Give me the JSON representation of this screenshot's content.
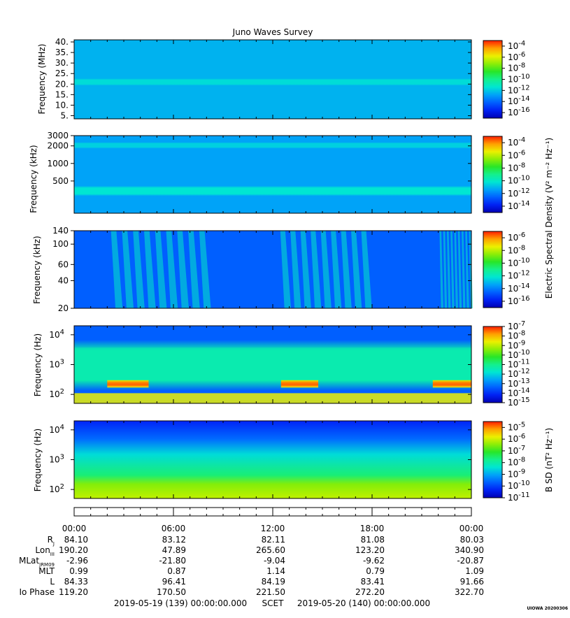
{
  "title": "Juno Waves Survey",
  "panels": [
    {
      "ylabel": "Frequency (MHz)",
      "yscale": "linear",
      "ylim": [
        3.5,
        41
      ],
      "yticks": [
        "5.",
        "10.",
        "15.",
        "20.",
        "25.",
        "30.",
        "35.",
        "40."
      ],
      "ytick_values": [
        5,
        10,
        15,
        20,
        25,
        30,
        35,
        40
      ],
      "colorbar": {
        "exponents": [
          "-4",
          "-6",
          "-8",
          "-10",
          "-12",
          "-14",
          "-16"
        ],
        "exponent_values": [
          -4,
          -6,
          -8,
          -10,
          -12,
          -14,
          -16
        ],
        "range": [
          -17,
          -3
        ]
      }
    },
    {
      "ylabel": "Frequency (kHz)",
      "yscale": "log",
      "ylim": [
        140,
        3000
      ],
      "yticks": [
        "500",
        "1000",
        "2000",
        "3000"
      ],
      "ytick_values": [
        500,
        1000,
        2000,
        3000
      ],
      "colorbar": {
        "label": "Electric Spectral Density (V² m⁻² Hz⁻¹)",
        "exponents": [
          "-4",
          "-6",
          "-8",
          "-10",
          "-12",
          "-14"
        ],
        "exponent_values": [
          -4,
          -6,
          -8,
          -10,
          -12,
          -14
        ],
        "range": [
          -15,
          -3
        ]
      }
    },
    {
      "ylabel": "Frequency (kHz)",
      "yscale": "log",
      "ylim": [
        20,
        140
      ],
      "yticks": [
        "20",
        "40",
        "60",
        "100",
        "140"
      ],
      "ytick_values": [
        20,
        40,
        60,
        100,
        140
      ],
      "colorbar": {
        "exponents": [
          "-6",
          "-8",
          "-10",
          "-12",
          "-14",
          "-16"
        ],
        "exponent_values": [
          -6,
          -8,
          -10,
          -12,
          -14,
          -16
        ],
        "range": [
          -17,
          -5
        ]
      }
    },
    {
      "ylabel": "Frequency (Hz)",
      "yscale": "log",
      "ylim": [
        50,
        20000
      ],
      "yticks": [
        "2",
        "3",
        "4"
      ],
      "ytick_values": [
        100,
        1000,
        10000
      ],
      "colorbar": {
        "exponents": [
          "-7",
          "-8",
          "-9",
          "-10",
          "-11",
          "-12",
          "-13",
          "-14",
          "-15"
        ],
        "exponent_values": [
          -7,
          -8,
          -9,
          -10,
          -11,
          -12,
          -13,
          -14,
          -15
        ],
        "range": [
          -15,
          -7
        ]
      }
    },
    {
      "ylabel": "Frequency (Hz)",
      "yscale": "log",
      "ylim": [
        50,
        20000
      ],
      "yticks": [
        "2",
        "3",
        "4"
      ],
      "ytick_values": [
        100,
        1000,
        10000
      ],
      "colorbar": {
        "label": "B SD (nT² Hz⁻¹)",
        "exponents": [
          "-5",
          "-6",
          "-7",
          "-8",
          "-9",
          "-10",
          "-11"
        ],
        "exponent_values": [
          -5,
          -6,
          -7,
          -8,
          -9,
          -10,
          -11
        ],
        "range": [
          -11,
          -4.5
        ]
      }
    }
  ],
  "ephemeris": {
    "times": [
      "00:00",
      "06:00",
      "12:00",
      "18:00",
      "00:00"
    ],
    "rows": [
      {
        "label": "R",
        "sub": "J",
        "values": [
          "84.10",
          "83.12",
          "82.11",
          "81.08",
          "80.03"
        ]
      },
      {
        "label": "Lon",
        "sub": "III",
        "values": [
          "190.20",
          "47.89",
          "265.60",
          "123.20",
          "340.90"
        ]
      },
      {
        "label": "MLat",
        "sub": "JRM09",
        "values": [
          "-2.96",
          "-21.80",
          "-9.04",
          "-9.62",
          "-20.87"
        ]
      },
      {
        "label": "MLT",
        "sub": "",
        "values": [
          "0.99",
          "0.87",
          "1.14",
          "0.79",
          "1.09"
        ]
      },
      {
        "label": "L",
        "sub": "",
        "values": [
          "84.33",
          "96.41",
          "84.19",
          "83.41",
          "91.66"
        ]
      },
      {
        "label": "Io Phase",
        "sub": "",
        "values": [
          "119.20",
          "170.50",
          "221.50",
          "272.20",
          "322.70"
        ]
      }
    ]
  },
  "footer": {
    "start": "2019-05-19 (139) 00:00:00.000",
    "axis": "SCET",
    "end": "2019-05-20 (140) 00:00:00.000"
  },
  "stamp": "UIOWA 20200306",
  "chart_data": [
    {
      "type": "heatmap",
      "title": "Juno Waves Survey",
      "xlabel": "SCET",
      "xlim": [
        "2019-05-19 00:00",
        "2019-05-20 00:00"
      ],
      "ylabel": "Frequency (MHz)",
      "ylim": [
        3.5,
        41
      ],
      "colorscale_log10": [
        -17,
        -3
      ],
      "bands": [
        {
          "name": "background",
          "y_range": [
            3.5,
            41
          ],
          "log10_level": -12.5
        },
        {
          "name": "enhanced band",
          "y_range": [
            20,
            22
          ],
          "log10_level": -11.6
        }
      ]
    },
    {
      "type": "heatmap",
      "xlim": [
        "2019-05-19 00:00",
        "2019-05-20 00:00"
      ],
      "ylabel": "Frequency (kHz)",
      "ylim": [
        140,
        3000
      ],
      "colorscale_log10": [
        -15,
        -3
      ],
      "bands": [
        {
          "name": "background",
          "y_range": [
            140,
            3000
          ],
          "log10_level": -11.4
        },
        {
          "name": "enhanced band",
          "y_range": [
            300,
            380
          ],
          "log10_level": -10.2
        },
        {
          "name": "enhanced band",
          "y_range": [
            1900,
            2200
          ],
          "log10_level": -10.6
        }
      ]
    },
    {
      "type": "heatmap",
      "xlim": [
        "2019-05-19 00:00",
        "2019-05-20 00:00"
      ],
      "ylabel": "Frequency (kHz)",
      "ylim": [
        20,
        140
      ],
      "colorscale_log10": [
        -17,
        -5
      ],
      "background_log10_level": -14.6,
      "emission_episodes": [
        {
          "t_start": "02:00",
          "t_end": "08:00",
          "log10_level": -12
        },
        {
          "t_start": "12:15",
          "t_end": "17:45",
          "log10_level": -12
        },
        {
          "t_start": "22:00",
          "t_end": "24:00",
          "log10_level": -12
        }
      ]
    },
    {
      "type": "heatmap",
      "xlim": [
        "2019-05-19 00:00",
        "2019-05-20 00:00"
      ],
      "ylabel": "Frequency (Hz)",
      "ylim": [
        50,
        20000
      ],
      "colorscale_log10": [
        -15,
        -7
      ],
      "bands": [
        {
          "name": "upper background",
          "y_range": [
            3000,
            20000
          ],
          "log10_level": -13.4
        },
        {
          "name": "mid band",
          "y_range": [
            300,
            3000
          ],
          "log10_level": -11.4
        },
        {
          "name": "intense band",
          "y_range": [
            170,
            300
          ],
          "log10_level": -9
        }
      ],
      "intense_intervals": [
        {
          "t_start": "02:00",
          "t_end": "04:30"
        },
        {
          "t_start": "12:30",
          "t_end": "14:45"
        },
        {
          "t_start": "21:40",
          "t_end": "24:00"
        }
      ]
    },
    {
      "type": "heatmap",
      "xlim": [
        "2019-05-19 00:00",
        "2019-05-20 00:00"
      ],
      "ylabel": "Frequency (Hz)",
      "ylim": [
        50,
        20000
      ],
      "colorscale_log10": [
        -11,
        -4.5
      ],
      "bands": [
        {
          "name": "upper",
          "y_range": [
            5000,
            20000
          ],
          "log10_level": -10.3
        },
        {
          "name": "middle",
          "y_range": [
            500,
            5000
          ],
          "log10_level": -8.5
        },
        {
          "name": "lower",
          "y_range": [
            50,
            200
          ],
          "log10_level": -6.5
        }
      ]
    }
  ]
}
